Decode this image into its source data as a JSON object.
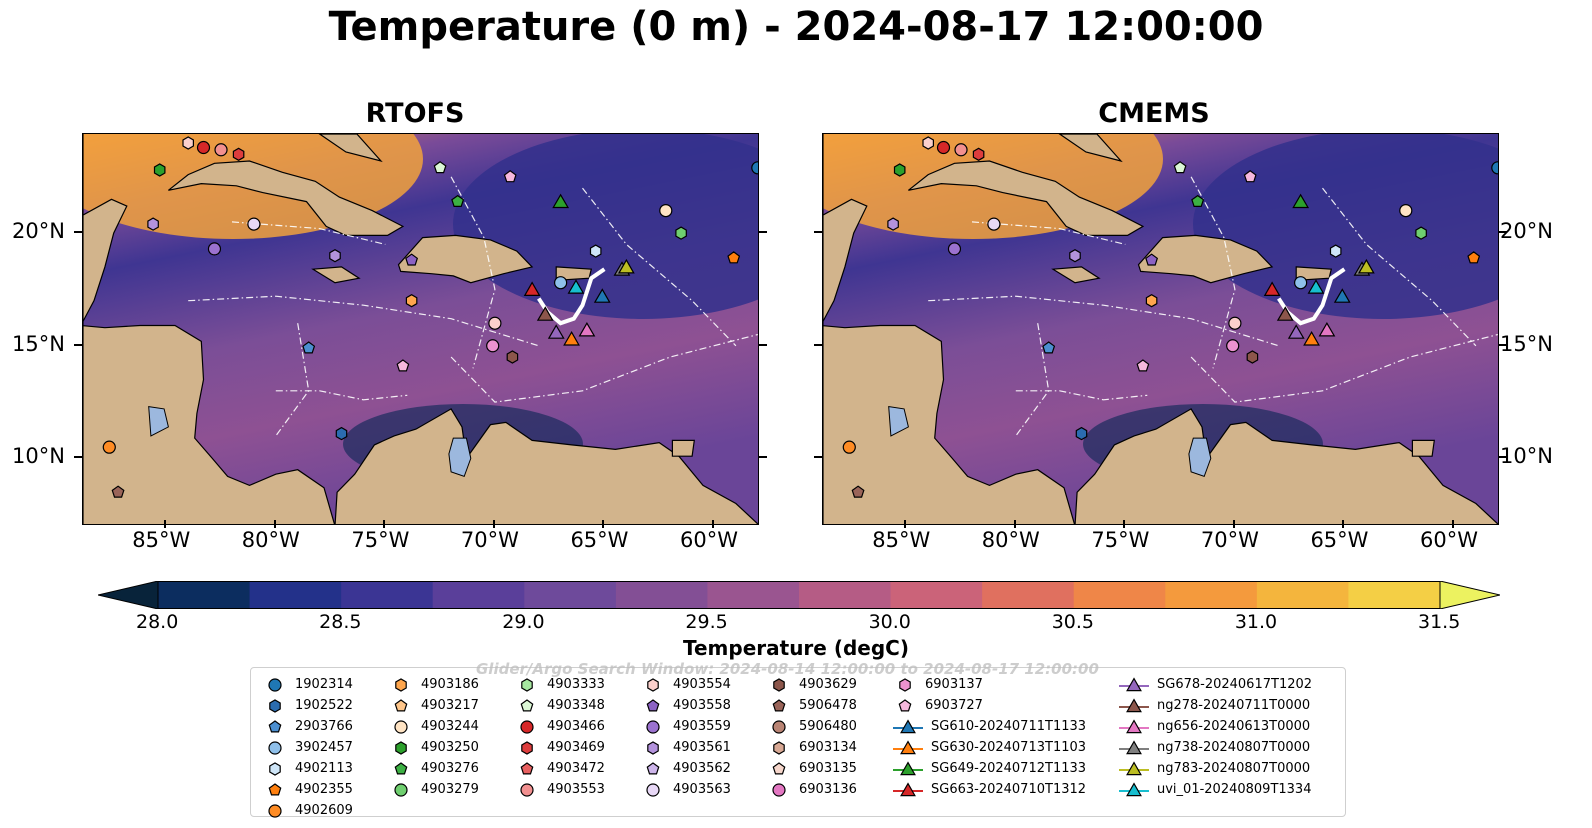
{
  "title": "Temperature (0 m) - 2024-08-17 12:00:00",
  "panels": [
    {
      "title": "RTOFS"
    },
    {
      "title": "CMEMS"
    }
  ],
  "axes": {
    "lon_ticks": [
      "85°W",
      "80°W",
      "75°W",
      "70°W",
      "65°W",
      "60°W"
    ],
    "lat_ticks": [
      "20°N",
      "15°N",
      "10°N"
    ]
  },
  "colorbar": {
    "label": "Temperature (degC)",
    "ticks": [
      "28.0",
      "28.5",
      "29.0",
      "29.5",
      "30.0",
      "30.5",
      "31.0",
      "31.5"
    ],
    "colors": [
      "#08233a",
      "#0c2d5f",
      "#23318a",
      "#3b3594",
      "#5a3f9a",
      "#6e4a9b",
      "#834f95",
      "#9a5590",
      "#b55c85",
      "#cb6379",
      "#e0705f",
      "#ef8648",
      "#f49a3d",
      "#f4b53d",
      "#f4cf45",
      "#ecf260"
    ]
  },
  "watermark": "Glider/Argo Search Window: 2024-08-14 12:00:00 to 2024-08-17 12:00:00",
  "legend": {
    "columns": [
      [
        {
          "label": "1902314",
          "marker": "circle",
          "color": "#1f77b4"
        },
        {
          "label": "1902522",
          "marker": "hexagon",
          "color": "#2b6cb0"
        },
        {
          "label": "2903766",
          "marker": "pentagon",
          "color": "#4c8fd0"
        },
        {
          "label": "3902457",
          "marker": "circle",
          "color": "#8fc0ea"
        },
        {
          "label": "4902113",
          "marker": "hexagon",
          "color": "#cfe6f8"
        },
        {
          "label": "4902355",
          "marker": "pentagon",
          "color": "#ff7f0e"
        },
        {
          "label": "4902609",
          "marker": "circle",
          "color": "#ff8c24"
        }
      ],
      [
        {
          "label": "4903186",
          "marker": "hexagon",
          "color": "#ffa64d"
        },
        {
          "label": "4903217",
          "marker": "pentagon",
          "color": "#ffc68a"
        },
        {
          "label": "4903244",
          "marker": "circle",
          "color": "#ffe4c4"
        },
        {
          "label": "4903250",
          "marker": "hexagon",
          "color": "#2ca02c"
        },
        {
          "label": "4903276",
          "marker": "pentagon",
          "color": "#3cb043"
        },
        {
          "label": "4903279",
          "marker": "circle",
          "color": "#6fcf6f"
        }
      ],
      [
        {
          "label": "4903333",
          "marker": "hexagon",
          "color": "#a6e7a0"
        },
        {
          "label": "4903348",
          "marker": "pentagon",
          "color": "#dcf8d6"
        },
        {
          "label": "4903466",
          "marker": "circle",
          "color": "#d62728"
        },
        {
          "label": "4903469",
          "marker": "hexagon",
          "color": "#dd3d3d"
        },
        {
          "label": "4903472",
          "marker": "pentagon",
          "color": "#e86060"
        },
        {
          "label": "4903553",
          "marker": "circle",
          "color": "#f29090"
        }
      ],
      [
        {
          "label": "4903554",
          "marker": "hexagon",
          "color": "#fbd0cc"
        },
        {
          "label": "4903558",
          "marker": "pentagon",
          "color": "#8c62c4"
        },
        {
          "label": "4903559",
          "marker": "circle",
          "color": "#9b72cf"
        },
        {
          "label": "4903561",
          "marker": "hexagon",
          "color": "#b392dc"
        },
        {
          "label": "4903562",
          "marker": "pentagon",
          "color": "#cdb5ea"
        },
        {
          "label": "4903563",
          "marker": "circle",
          "color": "#e8d8f6"
        }
      ],
      [
        {
          "label": "4903629",
          "marker": "hexagon",
          "color": "#8c564b"
        },
        {
          "label": "5906478",
          "marker": "pentagon",
          "color": "#9a6459"
        },
        {
          "label": "5906480",
          "marker": "circle",
          "color": "#b98474"
        },
        {
          "label": "6903134",
          "marker": "hexagon",
          "color": "#d8a894"
        },
        {
          "label": "6903135",
          "marker": "pentagon",
          "color": "#f6d6cb"
        },
        {
          "label": "6903136",
          "marker": "circle",
          "color": "#e377c2"
        }
      ],
      [
        {
          "label": "6903137",
          "marker": "hexagon",
          "color": "#ec92cf"
        },
        {
          "label": "6903727",
          "marker": "pentagon",
          "color": "#f6b8dd"
        },
        {
          "label": "SG610-20240711T1133",
          "marker": "triangle-line",
          "color": "#1f77b4"
        },
        {
          "label": "SG630-20240713T1103",
          "marker": "triangle-line",
          "color": "#ff7f0e"
        },
        {
          "label": "SG649-20240712T1133",
          "marker": "triangle-line",
          "color": "#2ca02c"
        },
        {
          "label": "SG663-20240710T1312",
          "marker": "triangle-line",
          "color": "#d62728"
        }
      ],
      [
        {
          "label": "SG678-20240617T1202",
          "marker": "triangle-line",
          "color": "#9467bd"
        },
        {
          "label": "ng278-20240711T0000",
          "marker": "triangle-line",
          "color": "#8c564b"
        },
        {
          "label": "ng656-20240613T0000",
          "marker": "triangle-line",
          "color": "#e377c2"
        },
        {
          "label": "ng738-20240807T0000",
          "marker": "triangle-line",
          "color": "#7f7f7f"
        },
        {
          "label": "ng783-20240807T0000",
          "marker": "triangle-line",
          "color": "#bcbd22"
        },
        {
          "label": "uvi_01-20240809T1334",
          "marker": "triangle-line",
          "color": "#17becf"
        }
      ]
    ]
  },
  "map_points": [
    {
      "lon": -83.3,
      "lat": 23.8,
      "marker": "circle",
      "color": "#d62728"
    },
    {
      "lon": -82.5,
      "lat": 23.7,
      "marker": "circle",
      "color": "#f29090"
    },
    {
      "lon": -81.7,
      "lat": 23.5,
      "marker": "hexagon",
      "color": "#dd3d3d"
    },
    {
      "lon": -84.0,
      "lat": 24.0,
      "marker": "hexagon",
      "color": "#fbd0cc"
    },
    {
      "lon": -85.3,
      "lat": 22.8,
      "marker": "hexagon",
      "color": "#2ca02c"
    },
    {
      "lon": -72.5,
      "lat": 22.9,
      "marker": "pentagon",
      "color": "#dcf8d6"
    },
    {
      "lon": -71.7,
      "lat": 21.4,
      "marker": "pentagon",
      "color": "#3cb043"
    },
    {
      "lon": -69.3,
      "lat": 22.5,
      "marker": "pentagon",
      "color": "#f6b8dd"
    },
    {
      "lon": -62.2,
      "lat": 21.0,
      "marker": "circle",
      "color": "#ffe4c4"
    },
    {
      "lon": -61.5,
      "lat": 20.0,
      "marker": "hexagon",
      "color": "#6fcf6f"
    },
    {
      "lon": -59.1,
      "lat": 18.9,
      "marker": "pentagon",
      "color": "#ff7f0e"
    },
    {
      "lon": -58.0,
      "lat": 22.9,
      "marker": "circle",
      "color": "#1f77b4"
    },
    {
      "lon": -85.6,
      "lat": 20.4,
      "marker": "hexagon",
      "color": "#b392dc"
    },
    {
      "lon": -81.0,
      "lat": 20.4,
      "marker": "circle",
      "color": "#e8d8f6"
    },
    {
      "lon": -82.8,
      "lat": 19.3,
      "marker": "circle",
      "color": "#9b72cf"
    },
    {
      "lon": -77.3,
      "lat": 19.0,
      "marker": "hexagon",
      "color": "#b392dc"
    },
    {
      "lon": -73.8,
      "lat": 18.8,
      "marker": "pentagon",
      "color": "#8c62c4"
    },
    {
      "lon": -65.4,
      "lat": 19.2,
      "marker": "hexagon",
      "color": "#cfe6f8"
    },
    {
      "lon": -67.0,
      "lat": 17.8,
      "marker": "circle",
      "color": "#8fc0ea"
    },
    {
      "lon": -73.8,
      "lat": 17.0,
      "marker": "hexagon",
      "color": "#ffa64d"
    },
    {
      "lon": -70.0,
      "lat": 16.0,
      "marker": "circle",
      "color": "#fbd0cc"
    },
    {
      "lon": -70.1,
      "lat": 15.0,
      "marker": "circle",
      "color": "#ec92cf"
    },
    {
      "lon": -69.2,
      "lat": 14.5,
      "marker": "hexagon",
      "color": "#8c564b"
    },
    {
      "lon": -74.2,
      "lat": 14.1,
      "marker": "pentagon",
      "color": "#f6b8dd"
    },
    {
      "lon": -78.5,
      "lat": 14.9,
      "marker": "pentagon",
      "color": "#4c8fd0"
    },
    {
      "lon": -77.0,
      "lat": 11.1,
      "marker": "hexagon",
      "color": "#2b6cb0"
    },
    {
      "lon": -87.6,
      "lat": 10.5,
      "marker": "circle",
      "color": "#ff8c24"
    },
    {
      "lon": -87.2,
      "lat": 8.5,
      "marker": "pentagon",
      "color": "#9a6459"
    },
    {
      "lon": -67.0,
      "lat": 21.4,
      "marker": "triangle",
      "color": "#2ca02c"
    },
    {
      "lon": -68.3,
      "lat": 17.5,
      "marker": "triangle",
      "color": "#d62728"
    },
    {
      "lon": -67.7,
      "lat": 16.4,
      "marker": "triangle",
      "color": "#8c564b"
    },
    {
      "lon": -67.2,
      "lat": 15.6,
      "marker": "triangle",
      "color": "#9467bd"
    },
    {
      "lon": -66.5,
      "lat": 15.3,
      "marker": "triangle",
      "color": "#ff7f0e"
    },
    {
      "lon": -65.8,
      "lat": 15.7,
      "marker": "triangle",
      "color": "#e377c2"
    },
    {
      "lon": -66.3,
      "lat": 17.6,
      "marker": "triangle",
      "color": "#17becf"
    },
    {
      "lon": -65.1,
      "lat": 17.2,
      "marker": "triangle",
      "color": "#1f77b4"
    },
    {
      "lon": -64.2,
      "lat": 18.4,
      "marker": "triangle",
      "color": "#7f7f7f"
    },
    {
      "lon": -64.0,
      "lat": 18.5,
      "marker": "triangle",
      "color": "#bcbd22"
    }
  ]
}
